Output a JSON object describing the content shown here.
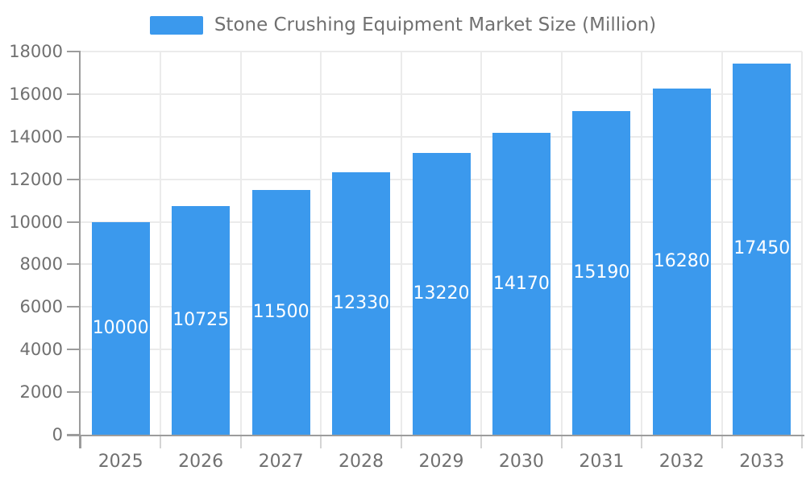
{
  "chart_data": {
    "type": "bar",
    "title": "Stone Crushing Equipment Market Size (Million)",
    "categories": [
      "2025",
      "2026",
      "2027",
      "2028",
      "2029",
      "2030",
      "2031",
      "2032",
      "2033"
    ],
    "values": [
      10000,
      10725,
      11500,
      12330,
      13220,
      14170,
      15190,
      16280,
      17450
    ],
    "xlabel": "",
    "ylabel": "",
    "ylim": [
      0,
      18000
    ],
    "y_ticks": [
      0,
      2000,
      4000,
      6000,
      8000,
      10000,
      12000,
      14000,
      16000,
      18000
    ],
    "grid": "on",
    "legend_position": "top-center",
    "value_label_position": "inside-center",
    "colors": {
      "bar": "#3b99ed",
      "value_label": "#ffffff",
      "axis_text": "#707070",
      "grid_line": "#ebebeb",
      "axis_line": "#9c9c9c",
      "minor_tick": "#d4d4d4",
      "background": "#ffffff"
    }
  }
}
